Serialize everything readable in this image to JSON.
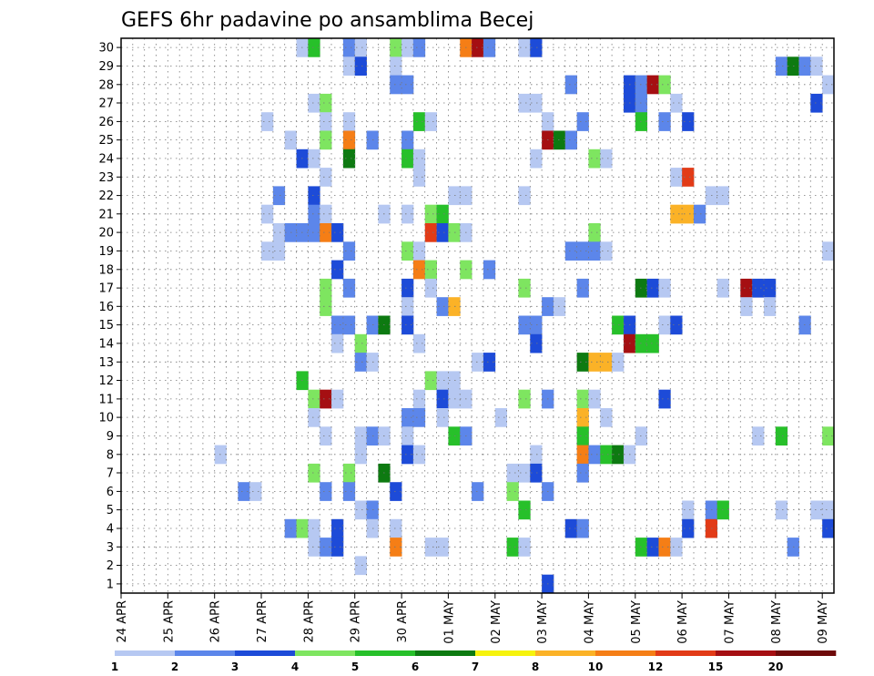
{
  "chart_data": {
    "type": "heatmap",
    "title": "GEFS 6hr padavine po ansamblima Becej",
    "x_ticks": [
      "24 APR",
      "25 APR",
      "26 APR",
      "27 APR",
      "28 APR",
      "29 APR",
      "30 APR",
      "01 MAY",
      "02 MAY",
      "03 MAY",
      "04 MAY",
      "05 MAY",
      "06 MAY",
      "07 MAY",
      "08 MAY",
      "09 MAY"
    ],
    "y_ticks": [
      1,
      2,
      3,
      4,
      5,
      6,
      7,
      8,
      9,
      10,
      11,
      12,
      13,
      14,
      15,
      16,
      17,
      18,
      19,
      20,
      21,
      22,
      23,
      24,
      25,
      26,
      27,
      28,
      29,
      30
    ],
    "steps_per_day": 4,
    "x_steps": 61,
    "ylim": [
      0.5,
      30.5
    ],
    "grid": true,
    "colorbar": {
      "levels": [
        1,
        2,
        3,
        4,
        5,
        6,
        7,
        8,
        10,
        12,
        15,
        20
      ],
      "colors": [
        "#b6c8f2",
        "#5c86ea",
        "#1d4bd8",
        "#7ee560",
        "#27c02a",
        "#0d7a11",
        "#f6f30c",
        "#fbb227",
        "#f57e16",
        "#e23b17",
        "#a50f12",
        "#6e0a0a"
      ]
    },
    "cells": [
      {
        "m": 30,
        "t": 15,
        "v": 1
      },
      {
        "m": 30,
        "t": 16,
        "v": 5
      },
      {
        "m": 30,
        "t": 19,
        "v": 2
      },
      {
        "m": 30,
        "t": 20,
        "v": 1
      },
      {
        "m": 30,
        "t": 23,
        "v": 4
      },
      {
        "m": 30,
        "t": 24,
        "v": 1
      },
      {
        "m": 30,
        "t": 25,
        "v": 2
      },
      {
        "m": 30,
        "t": 29,
        "v": 10
      },
      {
        "m": 30,
        "t": 30,
        "v": 15
      },
      {
        "m": 30,
        "t": 31,
        "v": 2
      },
      {
        "m": 30,
        "t": 34,
        "v": 1
      },
      {
        "m": 30,
        "t": 35,
        "v": 3
      },
      {
        "m": 29,
        "t": 19,
        "v": 1
      },
      {
        "m": 29,
        "t": 20,
        "v": 3
      },
      {
        "m": 29,
        "t": 23,
        "v": 1
      },
      {
        "m": 29,
        "t": 56,
        "v": 2
      },
      {
        "m": 29,
        "t": 57,
        "v": 6
      },
      {
        "m": 29,
        "t": 58,
        "v": 2
      },
      {
        "m": 29,
        "t": 59,
        "v": 1
      },
      {
        "m": 28,
        "t": 23,
        "v": 2
      },
      {
        "m": 28,
        "t": 24,
        "v": 2
      },
      {
        "m": 28,
        "t": 38,
        "v": 2
      },
      {
        "m": 28,
        "t": 43,
        "v": 3
      },
      {
        "m": 28,
        "t": 44,
        "v": 2
      },
      {
        "m": 28,
        "t": 45,
        "v": 15
      },
      {
        "m": 28,
        "t": 46,
        "v": 4
      },
      {
        "m": 28,
        "t": 60,
        "v": 1
      },
      {
        "m": 27,
        "t": 16,
        "v": 1
      },
      {
        "m": 27,
        "t": 17,
        "v": 4
      },
      {
        "m": 27,
        "t": 34,
        "v": 1
      },
      {
        "m": 27,
        "t": 35,
        "v": 1
      },
      {
        "m": 27,
        "t": 43,
        "v": 3
      },
      {
        "m": 27,
        "t": 44,
        "v": 2
      },
      {
        "m": 27,
        "t": 47,
        "v": 1
      },
      {
        "m": 27,
        "t": 59,
        "v": 3
      },
      {
        "m": 26,
        "t": 12,
        "v": 1
      },
      {
        "m": 26,
        "t": 17,
        "v": 1
      },
      {
        "m": 26,
        "t": 19,
        "v": 1
      },
      {
        "m": 26,
        "t": 25,
        "v": 5
      },
      {
        "m": 26,
        "t": 26,
        "v": 1
      },
      {
        "m": 26,
        "t": 36,
        "v": 1
      },
      {
        "m": 26,
        "t": 39,
        "v": 2
      },
      {
        "m": 26,
        "t": 44,
        "v": 5
      },
      {
        "m": 26,
        "t": 46,
        "v": 2
      },
      {
        "m": 26,
        "t": 48,
        "v": 3
      },
      {
        "m": 25,
        "t": 14,
        "v": 1
      },
      {
        "m": 25,
        "t": 17,
        "v": 4
      },
      {
        "m": 25,
        "t": 19,
        "v": 10
      },
      {
        "m": 25,
        "t": 21,
        "v": 2
      },
      {
        "m": 25,
        "t": 24,
        "v": 2
      },
      {
        "m": 25,
        "t": 36,
        "v": 15
      },
      {
        "m": 25,
        "t": 37,
        "v": 6
      },
      {
        "m": 25,
        "t": 38,
        "v": 2
      },
      {
        "m": 24,
        "t": 15,
        "v": 3
      },
      {
        "m": 24,
        "t": 16,
        "v": 1
      },
      {
        "m": 24,
        "t": 19,
        "v": 6
      },
      {
        "m": 24,
        "t": 24,
        "v": 5
      },
      {
        "m": 24,
        "t": 25,
        "v": 1
      },
      {
        "m": 24,
        "t": 35,
        "v": 1
      },
      {
        "m": 24,
        "t": 40,
        "v": 4
      },
      {
        "m": 24,
        "t": 41,
        "v": 1
      },
      {
        "m": 23,
        "t": 17,
        "v": 1
      },
      {
        "m": 23,
        "t": 25,
        "v": 1
      },
      {
        "m": 23,
        "t": 47,
        "v": 1
      },
      {
        "m": 23,
        "t": 48,
        "v": 12
      },
      {
        "m": 22,
        "t": 13,
        "v": 2
      },
      {
        "m": 22,
        "t": 16,
        "v": 3
      },
      {
        "m": 22,
        "t": 28,
        "v": 1
      },
      {
        "m": 22,
        "t": 29,
        "v": 1
      },
      {
        "m": 22,
        "t": 34,
        "v": 1
      },
      {
        "m": 22,
        "t": 50,
        "v": 1
      },
      {
        "m": 22,
        "t": 51,
        "v": 1
      },
      {
        "m": 21,
        "t": 12,
        "v": 1
      },
      {
        "m": 21,
        "t": 16,
        "v": 2
      },
      {
        "m": 21,
        "t": 17,
        "v": 1
      },
      {
        "m": 21,
        "t": 22,
        "v": 1
      },
      {
        "m": 21,
        "t": 24,
        "v": 1
      },
      {
        "m": 21,
        "t": 26,
        "v": 4
      },
      {
        "m": 21,
        "t": 27,
        "v": 5
      },
      {
        "m": 21,
        "t": 47,
        "v": 8
      },
      {
        "m": 21,
        "t": 48,
        "v": 8
      },
      {
        "m": 21,
        "t": 49,
        "v": 2
      },
      {
        "m": 20,
        "t": 13,
        "v": 1
      },
      {
        "m": 20,
        "t": 14,
        "v": 2
      },
      {
        "m": 20,
        "t": 15,
        "v": 2
      },
      {
        "m": 20,
        "t": 16,
        "v": 2
      },
      {
        "m": 20,
        "t": 17,
        "v": 10
      },
      {
        "m": 20,
        "t": 18,
        "v": 3
      },
      {
        "m": 20,
        "t": 26,
        "v": 12
      },
      {
        "m": 20,
        "t": 27,
        "v": 3
      },
      {
        "m": 20,
        "t": 28,
        "v": 4
      },
      {
        "m": 20,
        "t": 29,
        "v": 1
      },
      {
        "m": 20,
        "t": 40,
        "v": 4
      },
      {
        "m": 19,
        "t": 12,
        "v": 1
      },
      {
        "m": 19,
        "t": 13,
        "v": 1
      },
      {
        "m": 19,
        "t": 19,
        "v": 2
      },
      {
        "m": 19,
        "t": 24,
        "v": 4
      },
      {
        "m": 19,
        "t": 25,
        "v": 1
      },
      {
        "m": 19,
        "t": 38,
        "v": 2
      },
      {
        "m": 19,
        "t": 39,
        "v": 2
      },
      {
        "m": 19,
        "t": 40,
        "v": 2
      },
      {
        "m": 19,
        "t": 41,
        "v": 1
      },
      {
        "m": 19,
        "t": 60,
        "v": 1
      },
      {
        "m": 18,
        "t": 18,
        "v": 3
      },
      {
        "m": 18,
        "t": 25,
        "v": 10
      },
      {
        "m": 18,
        "t": 26,
        "v": 4
      },
      {
        "m": 18,
        "t": 29,
        "v": 4
      },
      {
        "m": 18,
        "t": 31,
        "v": 2
      },
      {
        "m": 17,
        "t": 17,
        "v": 4
      },
      {
        "m": 17,
        "t": 19,
        "v": 2
      },
      {
        "m": 17,
        "t": 24,
        "v": 3
      },
      {
        "m": 17,
        "t": 26,
        "v": 1
      },
      {
        "m": 17,
        "t": 34,
        "v": 4
      },
      {
        "m": 17,
        "t": 39,
        "v": 2
      },
      {
        "m": 17,
        "t": 44,
        "v": 6
      },
      {
        "m": 17,
        "t": 45,
        "v": 3
      },
      {
        "m": 17,
        "t": 46,
        "v": 1
      },
      {
        "m": 17,
        "t": 51,
        "v": 1
      },
      {
        "m": 17,
        "t": 53,
        "v": 15
      },
      {
        "m": 17,
        "t": 54,
        "v": 3
      },
      {
        "m": 17,
        "t": 55,
        "v": 3
      },
      {
        "m": 16,
        "t": 17,
        "v": 4
      },
      {
        "m": 16,
        "t": 24,
        "v": 1
      },
      {
        "m": 16,
        "t": 27,
        "v": 2
      },
      {
        "m": 16,
        "t": 28,
        "v": 8
      },
      {
        "m": 16,
        "t": 36,
        "v": 2
      },
      {
        "m": 16,
        "t": 37,
        "v": 1
      },
      {
        "m": 16,
        "t": 53,
        "v": 1
      },
      {
        "m": 16,
        "t": 55,
        "v": 1
      },
      {
        "m": 15,
        "t": 18,
        "v": 2
      },
      {
        "m": 15,
        "t": 19,
        "v": 2
      },
      {
        "m": 15,
        "t": 21,
        "v": 2
      },
      {
        "m": 15,
        "t": 22,
        "v": 6
      },
      {
        "m": 15,
        "t": 24,
        "v": 3
      },
      {
        "m": 15,
        "t": 34,
        "v": 2
      },
      {
        "m": 15,
        "t": 35,
        "v": 2
      },
      {
        "m": 15,
        "t": 42,
        "v": 5
      },
      {
        "m": 15,
        "t": 43,
        "v": 3
      },
      {
        "m": 15,
        "t": 46,
        "v": 1
      },
      {
        "m": 15,
        "t": 47,
        "v": 3
      },
      {
        "m": 15,
        "t": 58,
        "v": 2
      },
      {
        "m": 14,
        "t": 18,
        "v": 1
      },
      {
        "m": 14,
        "t": 20,
        "v": 4
      },
      {
        "m": 14,
        "t": 25,
        "v": 1
      },
      {
        "m": 14,
        "t": 35,
        "v": 3
      },
      {
        "m": 14,
        "t": 43,
        "v": 15
      },
      {
        "m": 14,
        "t": 44,
        "v": 5
      },
      {
        "m": 14,
        "t": 45,
        "v": 5
      },
      {
        "m": 13,
        "t": 20,
        "v": 2
      },
      {
        "m": 13,
        "t": 21,
        "v": 1
      },
      {
        "m": 13,
        "t": 30,
        "v": 1
      },
      {
        "m": 13,
        "t": 31,
        "v": 3
      },
      {
        "m": 13,
        "t": 39,
        "v": 6
      },
      {
        "m": 13,
        "t": 40,
        "v": 8
      },
      {
        "m": 13,
        "t": 41,
        "v": 8
      },
      {
        "m": 13,
        "t": 42,
        "v": 1
      },
      {
        "m": 12,
        "t": 15,
        "v": 5
      },
      {
        "m": 12,
        "t": 26,
        "v": 4
      },
      {
        "m": 12,
        "t": 27,
        "v": 1
      },
      {
        "m": 12,
        "t": 28,
        "v": 1
      },
      {
        "m": 11,
        "t": 16,
        "v": 4
      },
      {
        "m": 11,
        "t": 17,
        "v": 15
      },
      {
        "m": 11,
        "t": 18,
        "v": 1
      },
      {
        "m": 11,
        "t": 25,
        "v": 1
      },
      {
        "m": 11,
        "t": 27,
        "v": 3
      },
      {
        "m": 11,
        "t": 28,
        "v": 1
      },
      {
        "m": 11,
        "t": 29,
        "v": 1
      },
      {
        "m": 11,
        "t": 34,
        "v": 4
      },
      {
        "m": 11,
        "t": 36,
        "v": 2
      },
      {
        "m": 11,
        "t": 39,
        "v": 4
      },
      {
        "m": 11,
        "t": 40,
        "v": 1
      },
      {
        "m": 11,
        "t": 46,
        "v": 3
      },
      {
        "m": 10,
        "t": 16,
        "v": 1
      },
      {
        "m": 10,
        "t": 24,
        "v": 2
      },
      {
        "m": 10,
        "t": 25,
        "v": 2
      },
      {
        "m": 10,
        "t": 27,
        "v": 1
      },
      {
        "m": 10,
        "t": 32,
        "v": 1
      },
      {
        "m": 10,
        "t": 39,
        "v": 8
      },
      {
        "m": 10,
        "t": 41,
        "v": 1
      },
      {
        "m": 9,
        "t": 17,
        "v": 1
      },
      {
        "m": 9,
        "t": 20,
        "v": 1
      },
      {
        "m": 9,
        "t": 21,
        "v": 2
      },
      {
        "m": 9,
        "t": 22,
        "v": 1
      },
      {
        "m": 9,
        "t": 24,
        "v": 1
      },
      {
        "m": 9,
        "t": 28,
        "v": 5
      },
      {
        "m": 9,
        "t": 29,
        "v": 2
      },
      {
        "m": 9,
        "t": 39,
        "v": 5
      },
      {
        "m": 9,
        "t": 44,
        "v": 1
      },
      {
        "m": 9,
        "t": 54,
        "v": 1
      },
      {
        "m": 9,
        "t": 56,
        "v": 5
      },
      {
        "m": 9,
        "t": 60,
        "v": 4
      },
      {
        "m": 8,
        "t": 8,
        "v": 1
      },
      {
        "m": 8,
        "t": 20,
        "v": 1
      },
      {
        "m": 8,
        "t": 24,
        "v": 3
      },
      {
        "m": 8,
        "t": 25,
        "v": 1
      },
      {
        "m": 8,
        "t": 35,
        "v": 1
      },
      {
        "m": 8,
        "t": 39,
        "v": 10
      },
      {
        "m": 8,
        "t": 40,
        "v": 2
      },
      {
        "m": 8,
        "t": 41,
        "v": 5
      },
      {
        "m": 8,
        "t": 42,
        "v": 6
      },
      {
        "m": 8,
        "t": 43,
        "v": 1
      },
      {
        "m": 7,
        "t": 16,
        "v": 4
      },
      {
        "m": 7,
        "t": 19,
        "v": 4
      },
      {
        "m": 7,
        "t": 22,
        "v": 6
      },
      {
        "m": 7,
        "t": 33,
        "v": 1
      },
      {
        "m": 7,
        "t": 34,
        "v": 1
      },
      {
        "m": 7,
        "t": 35,
        "v": 3
      },
      {
        "m": 7,
        "t": 39,
        "v": 2
      },
      {
        "m": 6,
        "t": 10,
        "v": 2
      },
      {
        "m": 6,
        "t": 11,
        "v": 1
      },
      {
        "m": 6,
        "t": 17,
        "v": 2
      },
      {
        "m": 6,
        "t": 19,
        "v": 2
      },
      {
        "m": 6,
        "t": 23,
        "v": 3
      },
      {
        "m": 6,
        "t": 30,
        "v": 2
      },
      {
        "m": 6,
        "t": 33,
        "v": 4
      },
      {
        "m": 6,
        "t": 36,
        "v": 2
      },
      {
        "m": 5,
        "t": 20,
        "v": 1
      },
      {
        "m": 5,
        "t": 21,
        "v": 2
      },
      {
        "m": 5,
        "t": 34,
        "v": 5
      },
      {
        "m": 5,
        "t": 48,
        "v": 1
      },
      {
        "m": 5,
        "t": 50,
        "v": 2
      },
      {
        "m": 5,
        "t": 51,
        "v": 5
      },
      {
        "m": 5,
        "t": 56,
        "v": 1
      },
      {
        "m": 5,
        "t": 59,
        "v": 1
      },
      {
        "m": 5,
        "t": 60,
        "v": 1
      },
      {
        "m": 4,
        "t": 14,
        "v": 2
      },
      {
        "m": 4,
        "t": 15,
        "v": 4
      },
      {
        "m": 4,
        "t": 16,
        "v": 1
      },
      {
        "m": 4,
        "t": 18,
        "v": 3
      },
      {
        "m": 4,
        "t": 21,
        "v": 1
      },
      {
        "m": 4,
        "t": 23,
        "v": 1
      },
      {
        "m": 4,
        "t": 38,
        "v": 3
      },
      {
        "m": 4,
        "t": 39,
        "v": 2
      },
      {
        "m": 4,
        "t": 48,
        "v": 3
      },
      {
        "m": 4,
        "t": 50,
        "v": 12
      },
      {
        "m": 4,
        "t": 60,
        "v": 3
      },
      {
        "m": 3,
        "t": 16,
        "v": 1
      },
      {
        "m": 3,
        "t": 17,
        "v": 2
      },
      {
        "m": 3,
        "t": 18,
        "v": 3
      },
      {
        "m": 3,
        "t": 23,
        "v": 10
      },
      {
        "m": 3,
        "t": 26,
        "v": 1
      },
      {
        "m": 3,
        "t": 27,
        "v": 1
      },
      {
        "m": 3,
        "t": 33,
        "v": 5
      },
      {
        "m": 3,
        "t": 34,
        "v": 1
      },
      {
        "m": 3,
        "t": 44,
        "v": 5
      },
      {
        "m": 3,
        "t": 45,
        "v": 3
      },
      {
        "m": 3,
        "t": 46,
        "v": 10
      },
      {
        "m": 3,
        "t": 47,
        "v": 1
      },
      {
        "m": 3,
        "t": 57,
        "v": 2
      },
      {
        "m": 2,
        "t": 20,
        "v": 1
      },
      {
        "m": 1,
        "t": 36,
        "v": 3
      }
    ]
  }
}
